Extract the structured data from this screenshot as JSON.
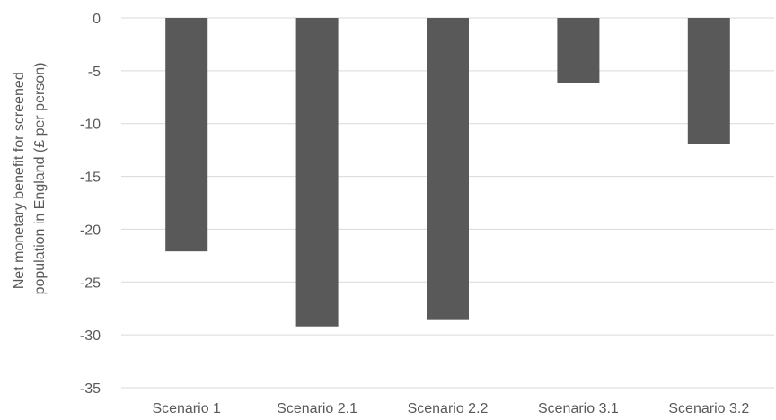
{
  "chart_data": {
    "type": "bar",
    "title": "",
    "xlabel": "",
    "ylabel_lines": [
      "Net monetary benefit for screened",
      "population in England (£ per person)"
    ],
    "categories": [
      "Scenario 1",
      "Scenario 2.1",
      "Scenario 2.2",
      "Scenario 3.1",
      "Scenario 3.2"
    ],
    "values": [
      -22.1,
      -29.2,
      -28.6,
      -6.2,
      -11.9
    ],
    "ylim": [
      -35,
      0
    ],
    "yticks": [
      0,
      -5,
      -10,
      -15,
      -20,
      -25,
      -30,
      -35
    ],
    "ytick_labels": [
      "0",
      "-5",
      "-10",
      "-15",
      "-20",
      "-25",
      "-30",
      "-35"
    ],
    "grid": true,
    "bar_color": "#595959",
    "grid_color": "#d9d9d9"
  }
}
